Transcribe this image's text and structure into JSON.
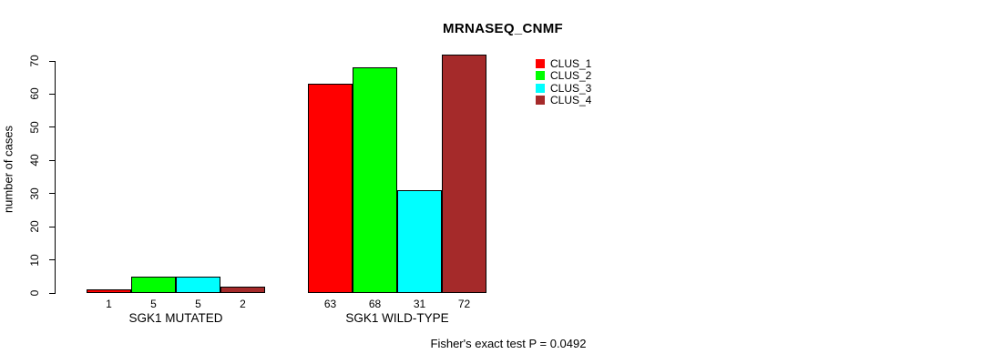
{
  "chart_data": {
    "type": "bar",
    "title": "MRNASEQ_CNMF",
    "ylabel": "number of cases",
    "xlabel": "",
    "ylim": [
      0,
      70
    ],
    "yticks": [
      0,
      10,
      20,
      30,
      40,
      50,
      60,
      70
    ],
    "grid": false,
    "legend_position": "top-right-inside",
    "bar_border_color": "#000000",
    "groups": [
      {
        "label": "SGK1 MUTATED",
        "values": [
          1,
          5,
          5,
          2
        ]
      },
      {
        "label": "SGK1 WILD-TYPE",
        "values": [
          63,
          68,
          31,
          72
        ]
      }
    ],
    "series": [
      {
        "name": "CLUS_1",
        "color": "#ff0000",
        "values": [
          1,
          63
        ]
      },
      {
        "name": "CLUS_2",
        "color": "#00ff00",
        "values": [
          5,
          68
        ]
      },
      {
        "name": "CLUS_3",
        "color": "#00ffff",
        "values": [
          5,
          31
        ]
      },
      {
        "name": "CLUS_4",
        "color": "#a52a2a",
        "values": [
          2,
          72
        ]
      }
    ],
    "bar_value_labels": [
      1,
      5,
      5,
      2,
      63,
      68,
      31,
      72
    ],
    "annotation": "Fisher's exact test P = 0.0492"
  }
}
